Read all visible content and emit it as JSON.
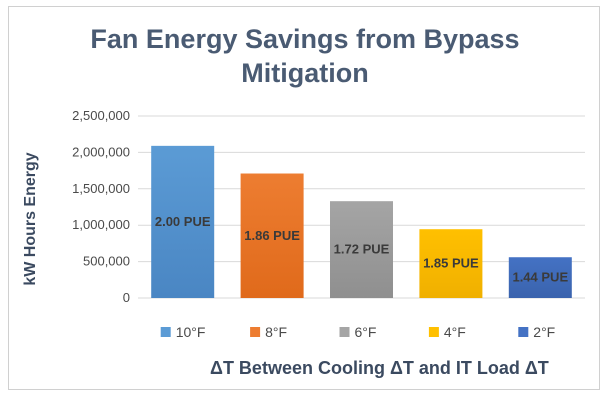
{
  "chart_data": {
    "type": "bar",
    "title_line1": "Fan Energy Savings from Bypass",
    "title_line2": "Mitigation",
    "xlabel": "ΔT Between Cooling ΔT and IT Load ΔT",
    "ylabel": "kW Hours Energy",
    "ylim": [
      0,
      2500000
    ],
    "yticks": [
      {
        "value": 0,
        "label": "0"
      },
      {
        "value": 500000,
        "label": "500,000"
      },
      {
        "value": 1000000,
        "label": "1,000,000"
      },
      {
        "value": 1500000,
        "label": "1,500,000"
      },
      {
        "value": 2000000,
        "label": "2,000,000"
      },
      {
        "value": 2500000,
        "label": "2,500,000"
      }
    ],
    "grid": true,
    "legend_position": "bottom",
    "series": [
      {
        "name": "10°F",
        "value": 2090000,
        "data_label": "2.00 PUE",
        "color": "#5b9bd5",
        "color_dark": "#4a86c3"
      },
      {
        "name": "8°F",
        "value": 1710000,
        "data_label": "1.86 PUE",
        "color": "#ed7d31",
        "color_dark": "#e06a1b"
      },
      {
        "name": "6°F",
        "value": 1330000,
        "data_label": "1.72 PUE",
        "color": "#a5a5a5",
        "color_dark": "#8f8f8f"
      },
      {
        "name": "4°F",
        "value": 945000,
        "data_label": "1.85 PUE",
        "color": "#ffc000",
        "color_dark": "#f0b000"
      },
      {
        "name": "2°F",
        "value": 560000,
        "data_label": "1.44 PUE",
        "color": "#4472c4",
        "color_dark": "#3a63ad"
      }
    ]
  }
}
